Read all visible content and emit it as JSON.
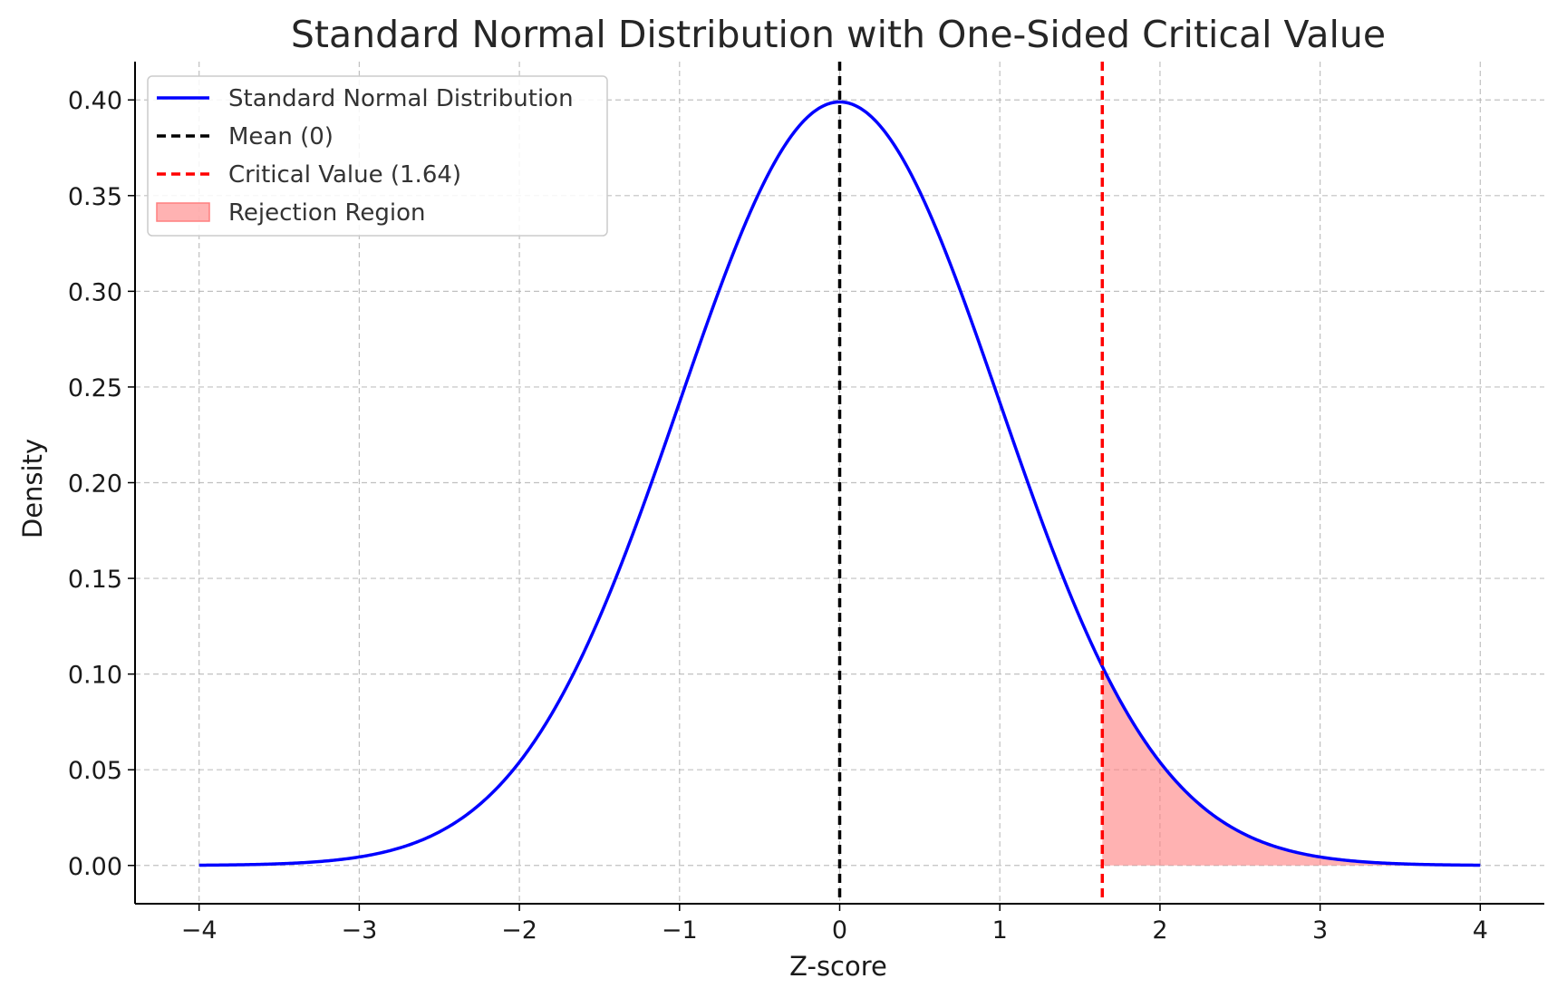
{
  "chart_data": {
    "type": "line",
    "title": "Standard Normal Distribution with One-Sided Critical Value",
    "xlabel": "Z-score",
    "ylabel": "Density",
    "xlim": [
      -4.4,
      4.4
    ],
    "ylim": [
      -0.02,
      0.42
    ],
    "xticks": [
      -4,
      -3,
      -2,
      -1,
      0,
      1,
      2,
      3,
      4
    ],
    "xtick_labels": [
      "−4",
      "−3",
      "−2",
      "−1",
      "0",
      "1",
      "2",
      "3",
      "4"
    ],
    "yticks": [
      0.0,
      0.05,
      0.1,
      0.15,
      0.2,
      0.25,
      0.3,
      0.35,
      0.4
    ],
    "ytick_labels": [
      "0.00",
      "0.05",
      "0.10",
      "0.15",
      "0.20",
      "0.25",
      "0.30",
      "0.35",
      "0.40"
    ],
    "grid": true,
    "legend_position": "top-left",
    "series": [
      {
        "name": "Standard Normal Distribution",
        "color": "#0000ff",
        "x": [
          -4.0,
          -3.5,
          -3.0,
          -2.5,
          -2.0,
          -1.75,
          -1.5,
          -1.25,
          -1.0,
          -0.75,
          -0.5,
          -0.25,
          0.0,
          0.25,
          0.5,
          0.75,
          1.0,
          1.25,
          1.5,
          1.64,
          1.75,
          2.0,
          2.5,
          3.0,
          3.5,
          4.0
        ],
        "y": [
          0.0001,
          0.0009,
          0.0044,
          0.0175,
          0.054,
          0.0863,
          0.1295,
          0.1826,
          0.242,
          0.3011,
          0.3521,
          0.3867,
          0.3989,
          0.3867,
          0.3521,
          0.3011,
          0.242,
          0.1826,
          0.1295,
          0.104,
          0.0863,
          0.054,
          0.0175,
          0.0044,
          0.0009,
          0.0001
        ]
      }
    ],
    "reference_lines": [
      {
        "name": "Mean (0)",
        "x": 0,
        "color": "#000000",
        "style": "dashed"
      },
      {
        "name": "Critical Value (1.64)",
        "x": 1.64,
        "color": "#ff0000",
        "style": "dashed"
      }
    ],
    "shaded_region": {
      "name": "Rejection Region",
      "x_from": 1.64,
      "x_to": 4.0,
      "color": "#ff7f7f"
    }
  }
}
